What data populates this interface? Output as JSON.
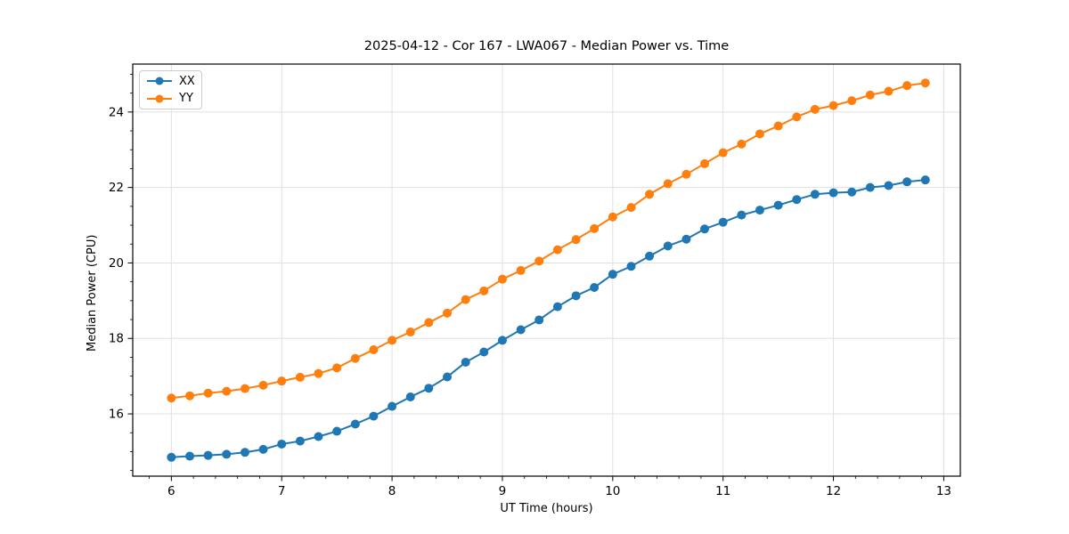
{
  "chart_data": {
    "type": "line",
    "title": "2025-04-12 - Cor 167 - LWA067 - Median Power vs. Time",
    "xlabel": "UT Time (hours)",
    "ylabel": "Median Power (CPU)",
    "xlim": [
      5.65,
      13.15
    ],
    "ylim": [
      14.35,
      25.27
    ],
    "x_ticks": [
      6,
      7,
      8,
      9,
      10,
      11,
      12,
      13
    ],
    "y_ticks": [
      16,
      18,
      20,
      22,
      24
    ],
    "x_minor_step": 0.2,
    "y_minor_step": 0.5,
    "grid": true,
    "legend_position": "upper-left",
    "marker": "circle",
    "x": [
      6.0,
      6.167,
      6.333,
      6.5,
      6.667,
      6.833,
      7.0,
      7.167,
      7.333,
      7.5,
      7.667,
      7.833,
      8.0,
      8.167,
      8.333,
      8.5,
      8.667,
      8.833,
      9.0,
      9.167,
      9.333,
      9.5,
      9.667,
      9.833,
      10.0,
      10.167,
      10.333,
      10.5,
      10.667,
      10.833,
      11.0,
      11.167,
      11.333,
      11.5,
      11.667,
      11.833,
      12.0,
      12.167,
      12.333,
      12.5,
      12.667,
      12.833
    ],
    "series": [
      {
        "name": "XX",
        "color": "#1f77b4",
        "values": [
          14.85,
          14.88,
          14.9,
          14.93,
          14.98,
          15.06,
          15.2,
          15.28,
          15.4,
          15.54,
          15.73,
          15.94,
          16.2,
          16.45,
          16.68,
          16.98,
          17.37,
          17.64,
          17.95,
          18.23,
          18.49,
          18.84,
          19.13,
          19.35,
          19.7,
          19.91,
          20.18,
          20.45,
          20.63,
          20.9,
          21.08,
          21.27,
          21.4,
          21.53,
          21.68,
          21.82,
          21.86,
          21.88,
          22.0,
          22.05,
          22.15,
          22.2
        ]
      },
      {
        "name": "YY",
        "color": "#ff7f0e",
        "values": [
          16.42,
          16.48,
          16.55,
          16.6,
          16.67,
          16.76,
          16.87,
          16.97,
          17.07,
          17.22,
          17.47,
          17.7,
          17.95,
          18.17,
          18.42,
          18.67,
          19.03,
          19.26,
          19.57,
          19.8,
          20.05,
          20.35,
          20.62,
          20.91,
          21.22,
          21.47,
          21.82,
          22.1,
          22.35,
          22.63,
          22.92,
          23.15,
          23.42,
          23.63,
          23.87,
          24.07,
          24.17,
          24.3,
          24.45,
          24.55,
          24.7,
          24.77
        ]
      }
    ]
  },
  "legend": {
    "items": [
      {
        "label": "XX"
      },
      {
        "label": "YY"
      }
    ]
  },
  "style": {
    "grid_color": "#e0e0e0",
    "spine_color": "#000000",
    "tick_color": "#000000",
    "background": "#ffffff"
  }
}
